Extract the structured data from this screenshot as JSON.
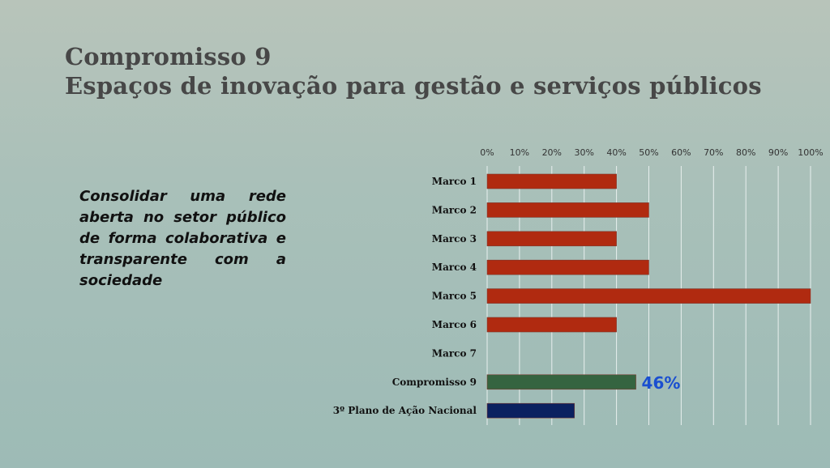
{
  "slide": {
    "title_line1": "Compromisso 9",
    "title_line2": "Espaços de inovação para gestão e serviços públicos",
    "description": "Consolidar uma rede aberta no setor público de forma colaborativa e transparente com a sociedade"
  },
  "chart_data": {
    "type": "bar",
    "orientation": "horizontal",
    "categories": [
      "Marco 1",
      "Marco 2",
      "Marco 3",
      "Marco 4",
      "Marco 5",
      "Marco 6",
      "Marco 7",
      "Compromisso 9",
      "3º Plano de Ação Nacional"
    ],
    "values": [
      40,
      50,
      40,
      50,
      100,
      40,
      0,
      46,
      27
    ],
    "colors": [
      "#b02a10",
      "#b02a10",
      "#b02a10",
      "#b02a10",
      "#b02a10",
      "#b02a10",
      "#b02a10",
      "#356440",
      "#0b2160"
    ],
    "xlim": [
      0,
      100
    ],
    "x_ticks": [
      "0%",
      "10%",
      "20%",
      "30%",
      "40%",
      "50%",
      "60%",
      "70%",
      "80%",
      "90%",
      "100%"
    ],
    "x_axis_position": "top",
    "grid": true,
    "data_labels": {
      "Compromisso 9": "46%"
    }
  }
}
